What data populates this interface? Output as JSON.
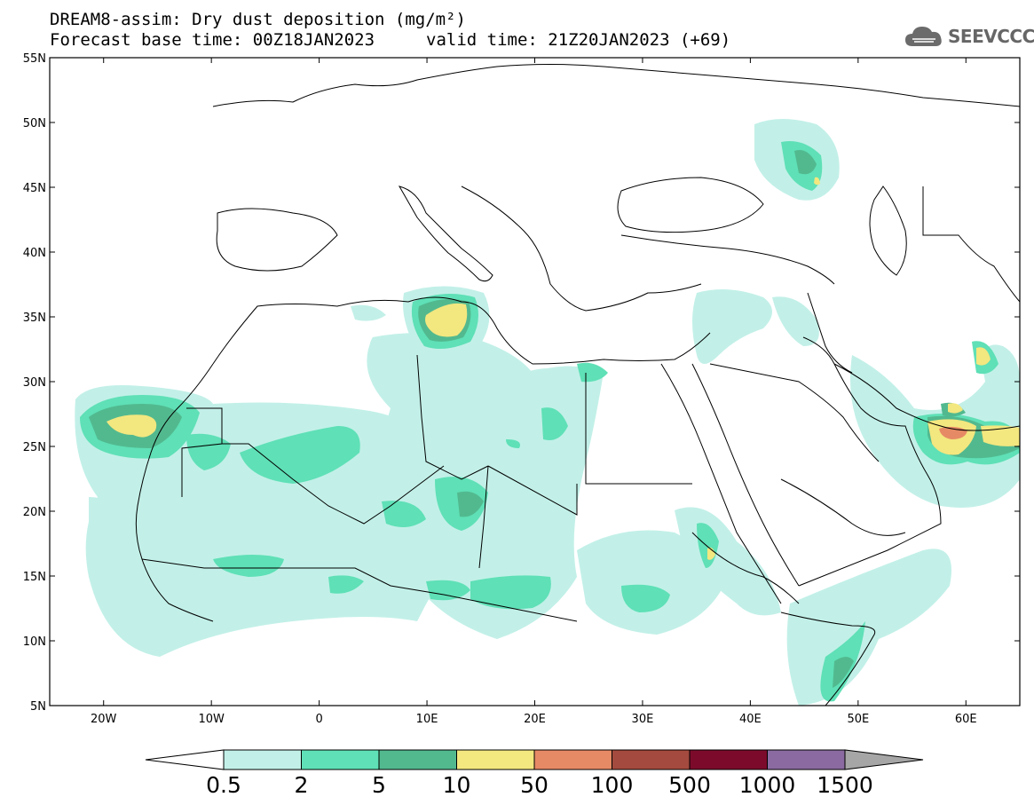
{
  "title": "DREAM8-assim: Dry dust deposition (mg/m²)",
  "forecast_base": "Forecast base time: 00Z18JAN2023",
  "valid_time": "valid time: 21Z20JAN2023 (+69)",
  "logo_text": "SEEVCCC",
  "map": {
    "lon_range": [
      -25,
      65
    ],
    "lat_range": [
      5,
      55
    ],
    "lat_ticks": [
      {
        "value": 55,
        "label": "55N"
      },
      {
        "value": 50,
        "label": "50N"
      },
      {
        "value": 45,
        "label": "45N"
      },
      {
        "value": 40,
        "label": "40N"
      },
      {
        "value": 35,
        "label": "35N"
      },
      {
        "value": 30,
        "label": "30N"
      },
      {
        "value": 25,
        "label": "25N"
      },
      {
        "value": 20,
        "label": "20N"
      },
      {
        "value": 15,
        "label": "15N"
      },
      {
        "value": 10,
        "label": "10N"
      },
      {
        "value": 5,
        "label": "5N"
      }
    ],
    "lon_ticks": [
      {
        "value": -20,
        "label": "20W"
      },
      {
        "value": -10,
        "label": "10W"
      },
      {
        "value": 0,
        "label": "0"
      },
      {
        "value": 10,
        "label": "10E"
      },
      {
        "value": 20,
        "label": "20E"
      },
      {
        "value": 30,
        "label": "30E"
      },
      {
        "value": 40,
        "label": "40E"
      },
      {
        "value": 50,
        "label": "50E"
      },
      {
        "value": 60,
        "label": "60E"
      }
    ]
  },
  "colorbar": {
    "levels": [
      "0.5",
      "2",
      "5",
      "10",
      "50",
      "100",
      "500",
      "1000",
      "1500"
    ],
    "colors": [
      "#c2f0e8",
      "#5fe0b6",
      "#52b98f",
      "#f3e77f",
      "#e68a65",
      "#a44a3e",
      "#7c0b2b",
      "#8a6aa0"
    ],
    "over_color": "#a6a6a6",
    "under_color": "#ffffff"
  },
  "dust_levels": {
    "l1": "#c2f0e8",
    "l2": "#5fe0b6",
    "l3": "#52b98f",
    "l4": "#f3e77f",
    "l5": "#e68a65"
  }
}
